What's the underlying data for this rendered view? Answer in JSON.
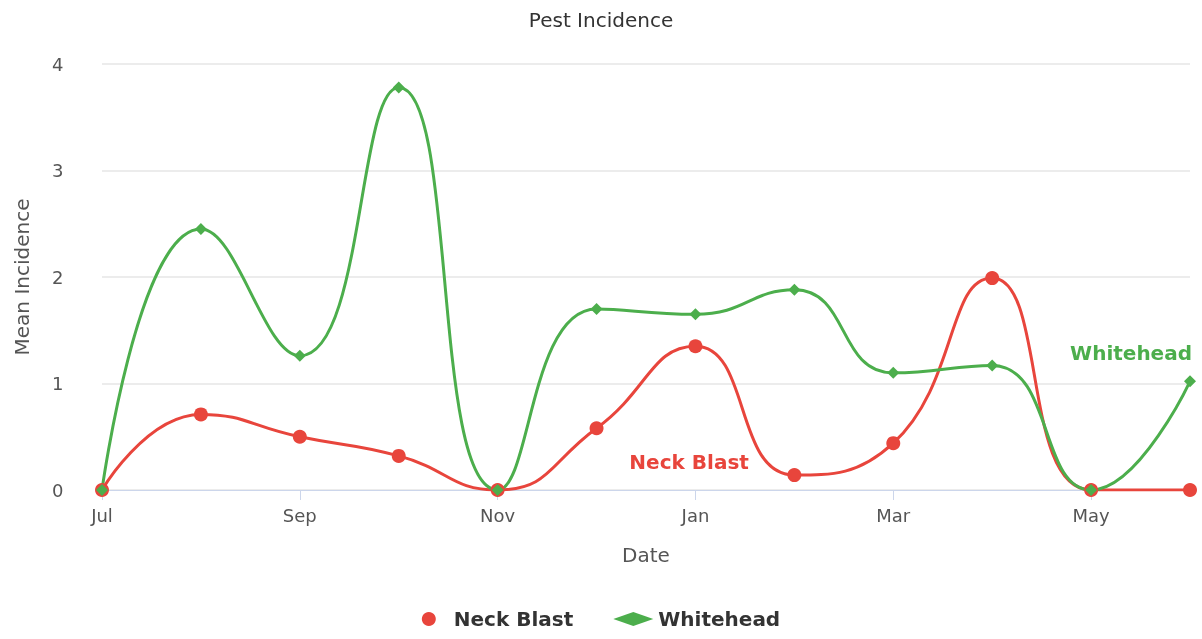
{
  "chart_data": {
    "type": "line",
    "title": "Pest Incidence",
    "xlabel": "Date",
    "ylabel": "Mean Incidence",
    "categories": [
      "Jul",
      null,
      "Sep",
      null,
      "Nov",
      null,
      "Jan",
      null,
      "Mar",
      null,
      "May",
      null
    ],
    "series": [
      {
        "name": "Neck Blast",
        "color": "#e8453c",
        "marker": "circle",
        "values": [
          0,
          0.71,
          0.5,
          0.32,
          0,
          0.58,
          1.35,
          0.14,
          0.44,
          1.99,
          0,
          0
        ]
      },
      {
        "name": "Whitehead",
        "color": "#4cae4c",
        "marker": "diamond",
        "values": [
          0,
          2.45,
          1.26,
          3.78,
          0,
          1.7,
          1.65,
          1.88,
          1.1,
          1.17,
          0,
          1.02
        ]
      }
    ],
    "ylim": [
      0,
      4
    ],
    "yticks": [
      0,
      1,
      2,
      3,
      4
    ],
    "grid": "y",
    "legend": "bottom",
    "line_style": "solid"
  }
}
